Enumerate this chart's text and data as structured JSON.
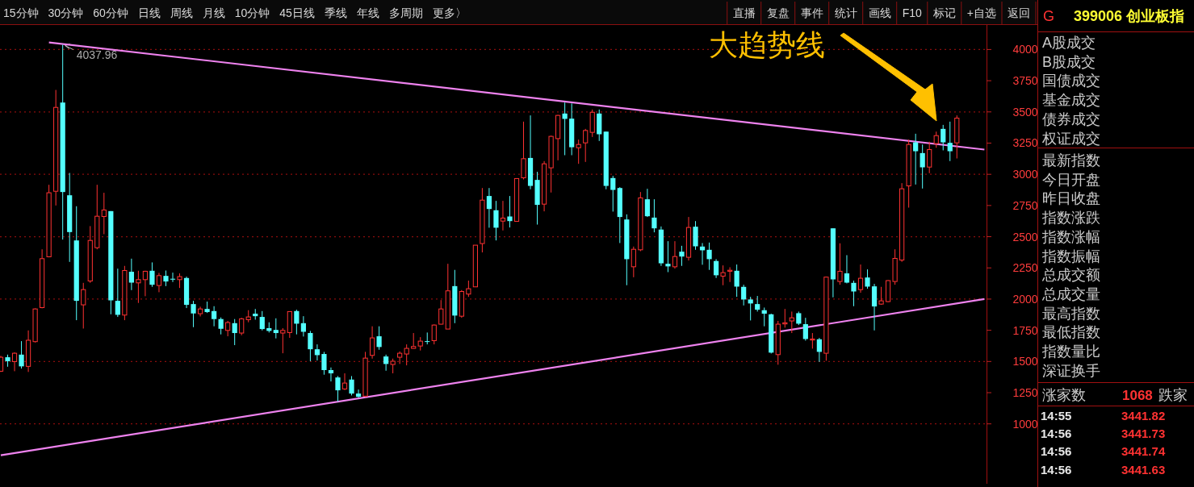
{
  "chart_data": [
    {
      "type": "candlestick",
      "categories": [
        null,
        null,
        null,
        null,
        null,
        null,
        null,
        null,
        null,
        null,
        null,
        null,
        null,
        null,
        null,
        null,
        null,
        null,
        null,
        null,
        null,
        null,
        null,
        null,
        null,
        null,
        null,
        null,
        null,
        null,
        null,
        null,
        null,
        null,
        null,
        null,
        null,
        null,
        null,
        null,
        null,
        null,
        null,
        null,
        null,
        null,
        null,
        null,
        null,
        null,
        null,
        null,
        null,
        null,
        null,
        null,
        null,
        null,
        null,
        null,
        null,
        null,
        null,
        null,
        null,
        null,
        null,
        null,
        null,
        null,
        null,
        null,
        null,
        null,
        null,
        null,
        null,
        null,
        null,
        null,
        null,
        null,
        null,
        null,
        null,
        null,
        null,
        null,
        null,
        null,
        null,
        null,
        null,
        null,
        null,
        null,
        null,
        null,
        null,
        null,
        null,
        null,
        null,
        null,
        null,
        null,
        null,
        null,
        null,
        null,
        null,
        null,
        null,
        null,
        null,
        null,
        null,
        null,
        null,
        null,
        null,
        null,
        null,
        null,
        null,
        null,
        null,
        null,
        null,
        null,
        null,
        null,
        null,
        null,
        null,
        null,
        null,
        null,
        null,
        null,
        null,
        null,
        null,
        null
      ],
      "ohlc": [
        [
          1422,
          1545,
          1416,
          1534
        ],
        [
          1534,
          1555,
          1458,
          1502
        ],
        [
          1499,
          1573,
          1422,
          1566
        ],
        [
          1555,
          1663,
          1443,
          1461
        ],
        [
          1461,
          1749,
          1416,
          1670
        ],
        [
          1659,
          1926,
          1652,
          1921
        ],
        [
          1932,
          2399,
          1926,
          2324
        ],
        [
          2339,
          2916,
          2335,
          2852
        ],
        [
          2864,
          3676,
          2750,
          3536
        ],
        [
          3575,
          4037.96,
          2477,
          2858
        ],
        [
          2832,
          3011,
          2298,
          2537
        ],
        [
          2470,
          2744,
          1831,
          1986
        ],
        [
          1954,
          2130,
          1764,
          2076
        ],
        [
          2145,
          2585,
          2130,
          2470
        ],
        [
          2412,
          2916,
          2399,
          2664
        ],
        [
          2662,
          2852,
          2520,
          2714
        ],
        [
          2705,
          2705,
          1878,
          1990
        ],
        [
          1986,
          2244,
          1857,
          1874
        ],
        [
          1872,
          2266,
          1831,
          2229
        ],
        [
          2219,
          2324,
          2072,
          2132
        ],
        [
          2130,
          2227,
          1969,
          2156
        ],
        [
          2156,
          2227,
          2023,
          2223
        ],
        [
          2227,
          2294,
          2098,
          2115
        ],
        [
          2109,
          2210,
          2055,
          2188
        ],
        [
          2186,
          2229,
          2104,
          2141
        ],
        [
          2163,
          2212,
          2137,
          2156
        ],
        [
          2156,
          2206,
          2089,
          2180
        ],
        [
          2169,
          2180,
          1928,
          1954
        ],
        [
          1960,
          1986,
          1775,
          1885
        ],
        [
          1883,
          1939,
          1861,
          1921
        ],
        [
          1921,
          1980,
          1889,
          1896
        ],
        [
          1904,
          1943,
          1782,
          1840
        ],
        [
          1840,
          1853,
          1717,
          1762
        ],
        [
          1749,
          1825,
          1702,
          1812
        ],
        [
          1807,
          1840,
          1631,
          1728
        ],
        [
          1728,
          1850,
          1710,
          1842
        ],
        [
          1835,
          1911,
          1814,
          1857
        ],
        [
          1883,
          1921,
          1835,
          1863
        ],
        [
          1857,
          1904,
          1749,
          1760
        ],
        [
          1767,
          1814,
          1732,
          1745
        ],
        [
          1753,
          1846,
          1685,
          1728
        ],
        [
          1728,
          1767,
          1566,
          1749
        ],
        [
          1732,
          1900,
          1689,
          1900
        ],
        [
          1904,
          1915,
          1717,
          1803
        ],
        [
          1807,
          1863,
          1700,
          1738
        ],
        [
          1728,
          1745,
          1502,
          1598
        ],
        [
          1598,
          1637,
          1508,
          1551
        ],
        [
          1560,
          1577,
          1394,
          1431
        ],
        [
          1431,
          1452,
          1340,
          1405
        ],
        [
          1372,
          1383,
          1179,
          1269
        ],
        [
          1280,
          1405,
          1271,
          1327
        ],
        [
          1355,
          1383,
          1228,
          1243
        ],
        [
          1243,
          1275,
          1211,
          1217
        ],
        [
          1222,
          1577,
          1215,
          1527
        ],
        [
          1549,
          1782,
          1523,
          1689
        ],
        [
          1702,
          1782,
          1594,
          1616
        ],
        [
          1540,
          1555,
          1426,
          1480
        ],
        [
          1476,
          1523,
          1405,
          1502
        ],
        [
          1534,
          1581,
          1480,
          1566
        ],
        [
          1560,
          1637,
          1469,
          1605
        ],
        [
          1605,
          1728,
          1603,
          1620
        ],
        [
          1624,
          1695,
          1588,
          1663
        ],
        [
          1663,
          1732,
          1637,
          1657
        ],
        [
          1667,
          1797,
          1637,
          1792
        ],
        [
          1799,
          1992,
          1797,
          1921
        ],
        [
          1760,
          2283,
          1760,
          2066
        ],
        [
          2104,
          2234,
          1807,
          1868
        ],
        [
          1863,
          2072,
          1850,
          2061
        ],
        [
          2040,
          2148,
          2018,
          2083
        ],
        [
          2098,
          2432,
          2098,
          2432
        ],
        [
          2445,
          2890,
          2374,
          2793
        ],
        [
          2826,
          2890,
          2572,
          2722
        ],
        [
          2712,
          2787,
          2470,
          2572
        ],
        [
          2625,
          2787,
          2550,
          2649
        ],
        [
          2662,
          2826,
          2574,
          2625
        ],
        [
          2623,
          2966,
          2623,
          2966
        ],
        [
          2972,
          3422,
          2959,
          3125
        ],
        [
          3131,
          3472,
          2880,
          2907
        ],
        [
          2955,
          3020,
          2597,
          2755
        ],
        [
          2761,
          3106,
          2703,
          3084
        ],
        [
          3052,
          3310,
          2854,
          3304
        ],
        [
          3286,
          3476,
          3112,
          3472
        ],
        [
          3487,
          3575,
          3153,
          3444
        ],
        [
          3446,
          3568,
          3153,
          3217
        ],
        [
          3213,
          3278,
          3084,
          3239
        ],
        [
          3252,
          3364,
          3099,
          3351
        ],
        [
          3336,
          3519,
          3299,
          3497
        ],
        [
          3487,
          3519,
          3267,
          3321
        ],
        [
          3342,
          3342,
          2880,
          2907
        ],
        [
          2970,
          2987,
          2701,
          2875
        ],
        [
          2890,
          2897,
          2449,
          2658
        ],
        [
          2638,
          2679,
          2111,
          2320
        ],
        [
          2259,
          2421,
          2175,
          2399
        ],
        [
          2395,
          2858,
          2384,
          2811
        ],
        [
          2800,
          2884,
          2658,
          2664
        ],
        [
          2653,
          2800,
          2535,
          2567
        ],
        [
          2557,
          2582,
          2266,
          2287
        ],
        [
          2283,
          2464,
          2216,
          2262
        ],
        [
          2259,
          2464,
          2244,
          2341
        ],
        [
          2380,
          2427,
          2266,
          2341
        ],
        [
          2335,
          2658,
          2309,
          2574
        ],
        [
          2580,
          2625,
          2395,
          2423
        ],
        [
          2421,
          2449,
          2275,
          2391
        ],
        [
          2395,
          2453,
          2234,
          2320
        ],
        [
          2305,
          2320,
          2169,
          2191
        ],
        [
          2184,
          2270,
          2111,
          2212
        ],
        [
          2223,
          2255,
          2137,
          2231
        ],
        [
          2227,
          2277,
          2018,
          2100
        ],
        [
          2098,
          2115,
          1949,
          1997
        ],
        [
          1997,
          2018,
          1829,
          1965
        ],
        [
          1960,
          2025,
          1900,
          1915
        ],
        [
          1911,
          1932,
          1782,
          1883
        ],
        [
          1878,
          1883,
          1564,
          1571
        ],
        [
          1555,
          1825,
          1474,
          1799
        ],
        [
          1801,
          1921,
          1771,
          1810
        ],
        [
          1825,
          1900,
          1728,
          1850
        ],
        [
          1887,
          1900,
          1792,
          1803
        ],
        [
          1799,
          1850,
          1667,
          1680
        ],
        [
          1672,
          1728,
          1603,
          1680
        ],
        [
          1678,
          1689,
          1497,
          1577
        ],
        [
          1566,
          2180,
          1506,
          2176
        ],
        [
          2567,
          2567,
          2014,
          2158
        ],
        [
          2141,
          2447,
          2115,
          2223
        ],
        [
          2206,
          2352,
          2126,
          2132
        ],
        [
          2130,
          2148,
          1943,
          2061
        ],
        [
          2076,
          2277,
          2051,
          2167
        ],
        [
          2173,
          2238,
          2083,
          2100
        ],
        [
          2102,
          2122,
          1749,
          1941
        ],
        [
          1960,
          2098,
          1954,
          1986
        ],
        [
          1980,
          2152,
          1975,
          2148
        ],
        [
          2141,
          2399,
          2115,
          2326
        ],
        [
          2313,
          2929,
          2298,
          2884
        ],
        [
          2907,
          3278,
          2733,
          3239
        ],
        [
          3256,
          3325,
          2918,
          3185
        ],
        [
          3170,
          3239,
          2886,
          3056
        ],
        [
          3058,
          3261,
          3009,
          3198
        ],
        [
          3246,
          3342,
          3213,
          3310
        ],
        [
          3364,
          3396,
          3192,
          3256
        ],
        [
          3252,
          3422,
          3106,
          3185
        ],
        [
          3252,
          3472,
          3127,
          3450
        ],
        null,
        null,
        null,
        null
      ],
      "series": [
        {
          "type": "line",
          "color": "#ee82ee",
          "values": [
            null,
            null,
            null,
            null,
            null,
            null,
            null,
            4057,
            null,
            null,
            null,
            null,
            null,
            null,
            null,
            null,
            null,
            null,
            null,
            null,
            null,
            null,
            null,
            null,
            null,
            null,
            null,
            null,
            null,
            null,
            null,
            null,
            null,
            null,
            null,
            null,
            null,
            null,
            null,
            null,
            null,
            null,
            null,
            null,
            null,
            null,
            null,
            null,
            null,
            null,
            null,
            null,
            null,
            null,
            null,
            null,
            null,
            null,
            null,
            null,
            null,
            null,
            null,
            null,
            null,
            null,
            null,
            null,
            null,
            null,
            null,
            null,
            null,
            null,
            null,
            null,
            null,
            null,
            null,
            null,
            null,
            null,
            null,
            null,
            null,
            null,
            null,
            null,
            null,
            null,
            null,
            null,
            null,
            null,
            null,
            null,
            null,
            null,
            null,
            null,
            null,
            null,
            null,
            null,
            null,
            null,
            null,
            null,
            null,
            null,
            null,
            null,
            null,
            null,
            null,
            null,
            null,
            null,
            null,
            null,
            null,
            null,
            null,
            null,
            null,
            null,
            null,
            null,
            null,
            null,
            null,
            null,
            null,
            null,
            null,
            null,
            null,
            null,
            null,
            null,
            null,
            null,
            null,
            3198
          ]
        },
        {
          "type": "line",
          "color": "#ee82ee",
          "values": [
            749,
            null,
            null,
            null,
            null,
            null,
            null,
            null,
            null,
            null,
            null,
            null,
            null,
            null,
            null,
            null,
            null,
            null,
            null,
            null,
            null,
            null,
            null,
            null,
            null,
            null,
            null,
            null,
            null,
            null,
            null,
            null,
            null,
            null,
            null,
            null,
            null,
            null,
            null,
            null,
            null,
            null,
            null,
            null,
            null,
            null,
            null,
            null,
            null,
            null,
            null,
            null,
            null,
            null,
            null,
            null,
            null,
            null,
            null,
            null,
            null,
            null,
            null,
            null,
            null,
            null,
            null,
            null,
            null,
            null,
            null,
            null,
            null,
            null,
            null,
            null,
            null,
            null,
            null,
            null,
            null,
            null,
            null,
            null,
            null,
            null,
            null,
            null,
            null,
            null,
            null,
            null,
            null,
            null,
            null,
            null,
            null,
            null,
            null,
            null,
            null,
            null,
            null,
            null,
            null,
            null,
            null,
            null,
            null,
            null,
            null,
            null,
            null,
            null,
            null,
            null,
            null,
            null,
            null,
            null,
            null,
            null,
            null,
            null,
            null,
            null,
            null,
            null,
            null,
            null,
            null,
            null,
            null,
            null,
            null,
            null,
            null,
            null,
            null,
            null,
            null,
            null,
            null,
            2000
          ]
        }
      ],
      "ylim": [
        520,
        4190
      ],
      "yticks": [
        1000,
        1250,
        1500,
        1750,
        2000,
        2250,
        2500,
        2750,
        3000,
        3250,
        3500,
        3750,
        4000
      ],
      "grid": "y",
      "annotations": [
        {
          "text": "4037.96",
          "y": 4037.96
        },
        "大趋势线"
      ]
    },
    {
      "type": "other",
      "annotations": [
        "15分钟",
        "30分钟",
        "60分钟",
        "日线",
        "周线",
        "月线",
        "10分钟",
        "45日线",
        "季线",
        "年线",
        "多周期",
        "更多〉"
      ]
    },
    {
      "type": "other",
      "annotations": [
        "直播",
        "复盘",
        "事件",
        "统计",
        "画线",
        "F10",
        "标记",
        "+自选",
        "返回"
      ]
    },
    {
      "type": "other",
      "title": "399006 创业板指",
      "annotations": [
        "G"
      ],
      "categories": [
        "A股成交",
        "B股成交",
        "国债成交",
        "基金成交",
        "债券成交",
        "权证成交"
      ]
    },
    {
      "type": "other",
      "categories": [
        "最新指数",
        "今日开盘",
        "昨日收盘",
        "指数涨跌",
        "指数涨幅",
        "指数振幅",
        "总成交额",
        "总成交量",
        "最高指数",
        "最低指数",
        "指数量比",
        "深证换手"
      ]
    },
    {
      "type": "other",
      "annotations": [
        "涨家数",
        "1068",
        "跌家"
      ]
    },
    {
      "type": "other",
      "categories": [
        "14:55",
        "14:56",
        "14:56",
        "14:56"
      ],
      "values": [
        3441.82,
        3441.73,
        3441.74,
        3441.63
      ],
      "data_labels": true
    }
  ]
}
